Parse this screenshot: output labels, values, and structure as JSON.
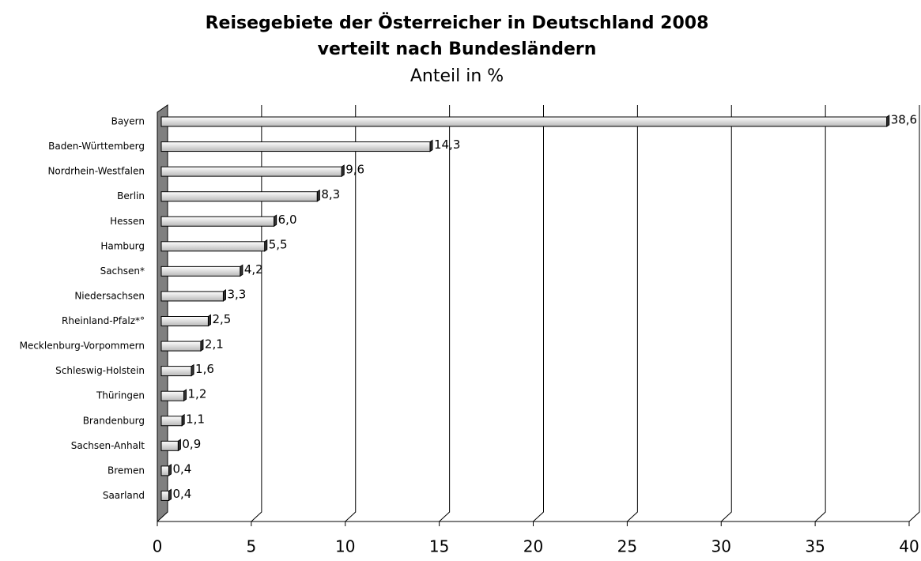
{
  "chart_data": {
    "type": "bar",
    "orientation": "horizontal",
    "title": "Reisegebiete der Österreicher in Deutschland 2008",
    "title2": "verteilt nach Bundesländern",
    "subtitle": "Anteil in %",
    "categories": [
      "Bayern",
      "Baden-Württemberg",
      "Nordrhein-Westfalen",
      "Berlin",
      "Hessen",
      "Hamburg",
      "Sachsen*",
      "Niedersachsen",
      "Rheinland-Pfalz*°",
      "Mecklenburg-Vorpommern",
      "Schleswig-Holstein",
      "Thüringen",
      "Brandenburg",
      "Sachsen-Anhalt",
      "Bremen",
      "Saarland"
    ],
    "values": [
      38.6,
      14.3,
      9.6,
      8.3,
      6.0,
      5.5,
      4.2,
      3.3,
      2.5,
      2.1,
      1.6,
      1.2,
      1.1,
      0.9,
      0.4,
      0.4
    ],
    "value_labels": [
      "38,6",
      "14,3",
      "9,6",
      "8,3",
      "6,0",
      "5,5",
      "4,2",
      "3,3",
      "2,5",
      "2,1",
      "1,6",
      "1,2",
      "1,1",
      "0,9",
      "0,4",
      "0,4"
    ],
    "color": "#ffffff",
    "xlim": [
      0,
      40
    ],
    "xticks": [
      0,
      5,
      10,
      15,
      20,
      25,
      30,
      35,
      40
    ],
    "grid": true
  }
}
